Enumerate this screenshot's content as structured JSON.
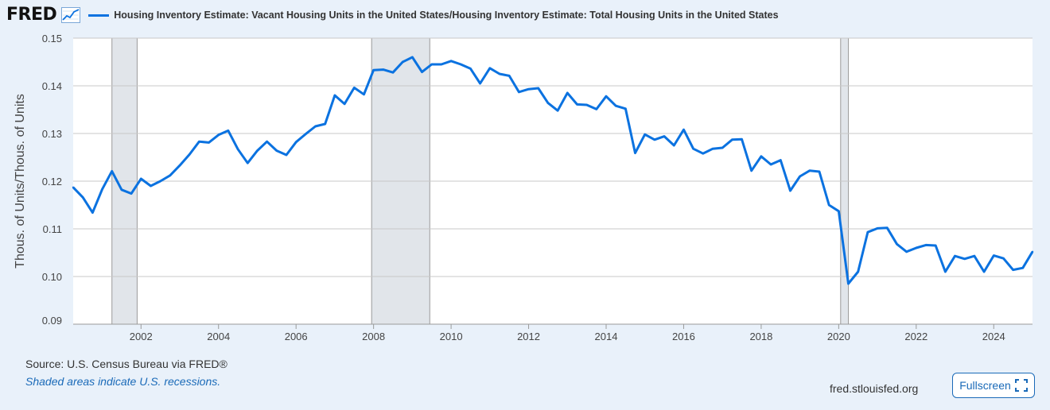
{
  "brand": {
    "logo_text": "FRED",
    "graph_icon": "line-graph-icon",
    "line_color": "#0b72e0"
  },
  "legend": {
    "series_label": "Housing Inventory Estimate: Vacant Housing Units in the United States/Housing Inventory Estimate: Total Housing Units in the United States"
  },
  "footer": {
    "source": "Source: U.S. Census Bureau via FRED®",
    "shaded_note": "Shaded areas indicate U.S. recessions.",
    "site": "fred.stlouisfed.org",
    "fullscreen_label": "Fullscreen",
    "fullscreen_icon": "expand-icon"
  },
  "chart_data": {
    "type": "line",
    "title": "Housing Inventory Estimate: Vacant Housing Units in the United States/Housing Inventory Estimate: Total Housing Units in the United States",
    "ylabel": "Thous. of Units/Thous. of Units",
    "xlabel": "",
    "ylim": [
      0.09,
      0.15
    ],
    "xlim": [
      2000.25,
      2025.0
    ],
    "yticks": [
      "0.09",
      "0.10",
      "0.11",
      "0.12",
      "0.13",
      "0.14",
      "0.15"
    ],
    "xticks": [
      "2002",
      "2004",
      "2006",
      "2008",
      "2010",
      "2012",
      "2014",
      "2016",
      "2018",
      "2020",
      "2022",
      "2024"
    ],
    "grid": true,
    "recessions": [
      [
        2001.25,
        2001.9
      ],
      [
        2007.95,
        2009.45
      ],
      [
        2020.05,
        2020.25
      ]
    ],
    "series": [
      {
        "name": "Housing Inventory Estimate: Vacant Housing Units in the United States/Housing Inventory Estimate: Total Housing Units in the United States",
        "x": [
          2000.25,
          2000.5,
          2000.75,
          2001.0,
          2001.25,
          2001.5,
          2001.75,
          2002.0,
          2002.25,
          2002.5,
          2002.75,
          2003.0,
          2003.25,
          2003.5,
          2003.75,
          2004.0,
          2004.25,
          2004.5,
          2004.75,
          2005.0,
          2005.25,
          2005.5,
          2005.75,
          2006.0,
          2006.25,
          2006.5,
          2006.75,
          2007.0,
          2007.25,
          2007.5,
          2007.75,
          2008.0,
          2008.25,
          2008.5,
          2008.75,
          2009.0,
          2009.25,
          2009.5,
          2009.75,
          2010.0,
          2010.25,
          2010.5,
          2010.75,
          2011.0,
          2011.25,
          2011.5,
          2011.75,
          2012.0,
          2012.25,
          2012.5,
          2012.75,
          2013.0,
          2013.25,
          2013.5,
          2013.75,
          2014.0,
          2014.25,
          2014.5,
          2014.75,
          2015.0,
          2015.25,
          2015.5,
          2015.75,
          2016.0,
          2016.25,
          2016.5,
          2016.75,
          2017.0,
          2017.25,
          2017.5,
          2017.75,
          2018.0,
          2018.25,
          2018.5,
          2018.75,
          2019.0,
          2019.25,
          2019.5,
          2019.75,
          2020.0,
          2020.25,
          2020.5,
          2020.75,
          2021.0,
          2021.25,
          2021.5,
          2021.75,
          2022.0,
          2022.25,
          2022.5,
          2022.75,
          2023.0,
          2023.25,
          2023.5,
          2023.75,
          2024.0,
          2024.25,
          2024.5,
          2024.75,
          2025.0
        ],
        "values": [
          0.1187,
          0.1166,
          0.1134,
          0.1183,
          0.1221,
          0.1182,
          0.1174,
          0.1205,
          0.119,
          0.12,
          0.1212,
          0.1233,
          0.1256,
          0.1283,
          0.1281,
          0.1297,
          0.1306,
          0.1267,
          0.1238,
          0.1264,
          0.1283,
          0.1264,
          0.1255,
          0.1282,
          0.1299,
          0.1315,
          0.132,
          0.138,
          0.1362,
          0.1396,
          0.1382,
          0.1433,
          0.1434,
          0.1428,
          0.145,
          0.146,
          0.1429,
          0.1445,
          0.1445,
          0.1452,
          0.1445,
          0.1436,
          0.1405,
          0.1437,
          0.1425,
          0.1421,
          0.1387,
          0.1393,
          0.1395,
          0.1364,
          0.1348,
          0.1385,
          0.1361,
          0.136,
          0.1351,
          0.1378,
          0.1358,
          0.1352,
          0.1259,
          0.1298,
          0.1287,
          0.1294,
          0.1275,
          0.1308,
          0.1268,
          0.1258,
          0.1268,
          0.127,
          0.1287,
          0.1288,
          0.1222,
          0.1252,
          0.1235,
          0.1244,
          0.118,
          0.121,
          0.1222,
          0.122,
          0.115,
          0.1137,
          0.0985,
          0.101,
          0.1093,
          0.1101,
          0.1102,
          0.1068,
          0.1052,
          0.106,
          0.1066,
          0.1065,
          0.101,
          0.1043,
          0.1037,
          0.1043,
          0.101,
          0.1044,
          0.1038,
          0.1014,
          0.1018,
          0.1052
        ]
      }
    ]
  }
}
